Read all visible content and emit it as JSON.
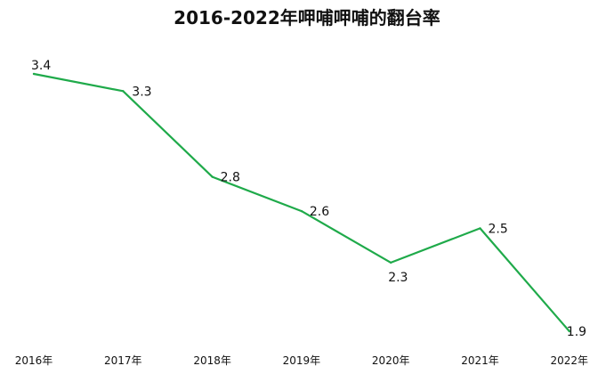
{
  "chart_data": {
    "type": "line",
    "title": "2016-2022年呷哺呷哺的翻台率",
    "categories": [
      "2016年",
      "2017年",
      "2018年",
      "2019年",
      "2020年",
      "2021年",
      "2022年"
    ],
    "series": [
      {
        "values": [
          3.4,
          3.3,
          2.8,
          2.6,
          2.3,
          2.5,
          1.9
        ],
        "color": "#1faa4a"
      }
    ],
    "data_labels": [
      "3.4",
      "3.3",
      "2.8",
      "2.6",
      "2.3",
      "2.5",
      "1.9"
    ],
    "ylim": [
      1.9,
      3.4
    ],
    "grid": false,
    "legend": "none"
  }
}
